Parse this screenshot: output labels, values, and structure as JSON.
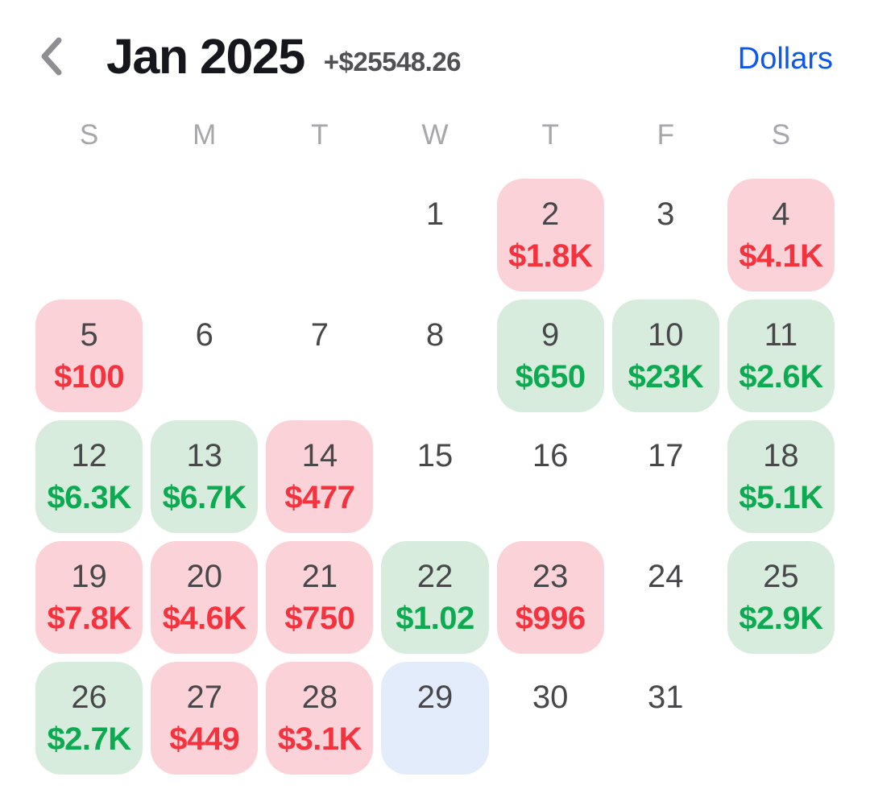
{
  "header": {
    "title": "Jan 2025",
    "total": "+$25548.26",
    "currency_label": "Dollars",
    "back_icon": "chevron-left-icon"
  },
  "weekdays": [
    "S",
    "M",
    "T",
    "W",
    "T",
    "F",
    "S"
  ],
  "calendar": {
    "month": "Jan 2025",
    "leading_blanks": 3,
    "days": [
      {
        "day": "1",
        "value": "",
        "state": "none"
      },
      {
        "day": "2",
        "value": "$1.8K",
        "state": "loss"
      },
      {
        "day": "3",
        "value": "",
        "state": "none"
      },
      {
        "day": "4",
        "value": "$4.1K",
        "state": "loss"
      },
      {
        "day": "5",
        "value": "$100",
        "state": "loss"
      },
      {
        "day": "6",
        "value": "",
        "state": "none"
      },
      {
        "day": "7",
        "value": "",
        "state": "none"
      },
      {
        "day": "8",
        "value": "",
        "state": "none"
      },
      {
        "day": "9",
        "value": "$650",
        "state": "gain"
      },
      {
        "day": "10",
        "value": "$23K",
        "state": "gain"
      },
      {
        "day": "11",
        "value": "$2.6K",
        "state": "gain"
      },
      {
        "day": "12",
        "value": "$6.3K",
        "state": "gain"
      },
      {
        "day": "13",
        "value": "$6.7K",
        "state": "gain"
      },
      {
        "day": "14",
        "value": "$477",
        "state": "loss"
      },
      {
        "day": "15",
        "value": "",
        "state": "none"
      },
      {
        "day": "16",
        "value": "",
        "state": "none"
      },
      {
        "day": "17",
        "value": "",
        "state": "none"
      },
      {
        "day": "18",
        "value": "$5.1K",
        "state": "gain"
      },
      {
        "day": "19",
        "value": "$7.8K",
        "state": "loss"
      },
      {
        "day": "20",
        "value": "$4.6K",
        "state": "loss"
      },
      {
        "day": "21",
        "value": "$750",
        "state": "loss"
      },
      {
        "day": "22",
        "value": "$1.02",
        "state": "gain"
      },
      {
        "day": "23",
        "value": "$996",
        "state": "loss"
      },
      {
        "day": "24",
        "value": "",
        "state": "none"
      },
      {
        "day": "25",
        "value": "$2.9K",
        "state": "gain"
      },
      {
        "day": "26",
        "value": "$2.7K",
        "state": "gain"
      },
      {
        "day": "27",
        "value": "$449",
        "state": "loss"
      },
      {
        "day": "28",
        "value": "$3.1K",
        "state": "loss"
      },
      {
        "day": "29",
        "value": "",
        "state": "today"
      },
      {
        "day": "30",
        "value": "",
        "state": "none"
      },
      {
        "day": "31",
        "value": "",
        "state": "none"
      }
    ]
  },
  "colors": {
    "title-color": "#16171c",
    "total-color": "#515155",
    "link-color": "#0b57f0",
    "weekday-color": "#a6a6ab",
    "daynum-color": "#48484a",
    "gain-bg": "#d8ecdd",
    "gain-text": "#0dab51",
    "loss-bg": "#fbd2d7",
    "loss-text": "#f4333e",
    "today-bg": "#e3ecfa",
    "chevron-color": "#8e8e93"
  }
}
